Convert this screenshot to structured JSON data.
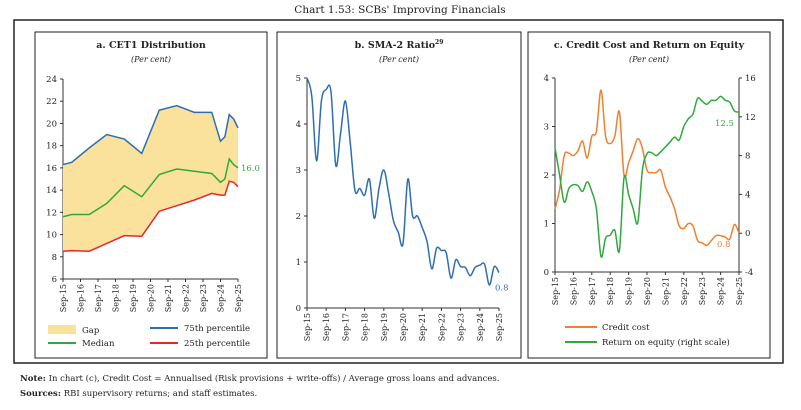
{
  "title": "Chart 1.53: SCBs' Improving Financials",
  "note_label": "Note:",
  "note_text": "In chart (c), Credit Cost = Annualised (Risk provisions + write-offs) / Average gross loans and advances.",
  "sources_label": "Sources:",
  "sources_text": "RBI supervisory returns; and staff estimates.",
  "chart_data": [
    {
      "type": "area",
      "title": "a. CET1 Distribution",
      "subtitle": "(Per cent)",
      "x_ticks": [
        "Sep-15",
        "Sep-16",
        "Sep-17",
        "Sep-18",
        "Sep-19",
        "Sep-20",
        "Sep-21",
        "Sep-22",
        "Sep-23",
        "Sep-24",
        "Sep-25"
      ],
      "x": [
        "Sep-15",
        "Mar-16",
        "Mar-17",
        "Mar-18",
        "Mar-19",
        "Mar-20",
        "Mar-21",
        "Mar-22",
        "Mar-23",
        "Mar-24",
        "Sep-24",
        "Dec-24",
        "Mar-25",
        "Jun-25",
        "Sep-25"
      ],
      "ylim": [
        6,
        24
      ],
      "yticks": [
        6,
        8,
        10,
        12,
        14,
        16,
        18,
        20,
        22,
        24
      ],
      "series": [
        {
          "name": "75th  percentile",
          "color": "#2e6db4",
          "values": [
            16.3,
            16.5,
            17.8,
            19.0,
            18.6,
            17.3,
            21.2,
            21.6,
            21.0,
            21.0,
            18.4,
            18.8,
            20.8,
            20.4,
            19.6
          ]
        },
        {
          "name": "Median",
          "color": "#2eaa3c",
          "values": [
            11.6,
            11.8,
            11.8,
            12.8,
            14.4,
            13.4,
            15.4,
            15.9,
            15.7,
            15.5,
            14.7,
            15.0,
            16.8,
            16.3,
            16.0
          ]
        },
        {
          "name": "25th percentile",
          "color": "#e8262a",
          "values": [
            8.5,
            8.55,
            8.5,
            9.2,
            9.9,
            9.85,
            12.1,
            12.6,
            13.1,
            13.7,
            13.55,
            13.55,
            14.8,
            14.7,
            14.3
          ]
        }
      ],
      "gap": {
        "name": "Gap",
        "color": "#fbe29c"
      },
      "end_label": "16.0",
      "legend_position": "bottom"
    },
    {
      "type": "line",
      "title": "b. SMA-2 Ratio",
      "title_sup": "29",
      "subtitle": "(Per cent)",
      "x_ticks": [
        "Sep-15",
        "Sep-16",
        "Sep-17",
        "Sep-18",
        "Sep-19",
        "Sep-20",
        "Sep-21",
        "Sep-22",
        "Sep-23",
        "Sep-24",
        "Sep-25"
      ],
      "ylim": [
        0,
        5
      ],
      "yticks": [
        0,
        1,
        2,
        3,
        4,
        5
      ],
      "series": [
        {
          "color": "#2e6db4",
          "values": [
            5.0,
            4.6,
            3.2,
            4.5,
            4.75,
            4.7,
            3.1,
            3.8,
            4.5,
            3.6,
            2.55,
            2.6,
            2.45,
            2.8,
            1.95,
            2.6,
            3.0,
            2.5,
            1.9,
            1.65,
            1.4,
            2.8,
            2.0,
            2.0,
            1.75,
            1.45,
            0.85,
            1.3,
            1.25,
            1.2,
            0.65,
            1.05,
            0.9,
            0.88,
            0.7,
            0.88,
            0.93,
            0.95,
            0.5,
            0.9,
            0.77
          ]
        }
      ],
      "end_label": "0.8"
    },
    {
      "type": "line",
      "title": "c. Credit Cost and Return on Equity",
      "subtitle": "(Per cent)",
      "x_ticks": [
        "Sep-15",
        "Sep-16",
        "Sep-17",
        "Sep-18",
        "Sep-19",
        "Sep-20",
        "Sep-21",
        "Sep-22",
        "Sep-23",
        "Sep-24",
        "Sep-25"
      ],
      "ylim": [
        0,
        4
      ],
      "yticks": [
        0,
        1,
        2,
        3,
        4
      ],
      "y2lim": [
        -4,
        16
      ],
      "y2ticks": [
        -4,
        0,
        4,
        8,
        12,
        16
      ],
      "series": [
        {
          "name": "Credit cost",
          "axis": "left",
          "color": "#f07f2e",
          "values": [
            1.3,
            1.7,
            2.4,
            2.45,
            2.4,
            2.5,
            2.7,
            2.35,
            2.8,
            2.9,
            3.75,
            2.8,
            2.65,
            2.8,
            3.3,
            2.0,
            2.25,
            2.5,
            2.75,
            2.55,
            2.1,
            2.05,
            2.05,
            2.1,
            1.75,
            1.55,
            1.3,
            0.95,
            0.9,
            1.0,
            0.95,
            0.65,
            0.6,
            0.55,
            0.65,
            0.75,
            0.75,
            0.72,
            0.68,
            0.98,
            0.8
          ],
          "end_label": "0.8"
        },
        {
          "name": "Return on equity (right scale)",
          "axis": "right",
          "color": "#2eaa3c",
          "values": [
            8.8,
            6.0,
            3.2,
            4.6,
            5.0,
            4.9,
            4.3,
            5.3,
            4.3,
            2.5,
            -2.4,
            -0.5,
            -0.2,
            0.3,
            -1.8,
            5.7,
            4.0,
            2.5,
            1.1,
            6.5,
            8.2,
            8.3,
            8.0,
            8.4,
            8.9,
            9.4,
            9.9,
            9.6,
            11.0,
            11.8,
            12.3,
            13.9,
            13.6,
            13.3,
            13.7,
            13.7,
            14.1,
            13.7,
            13.5,
            12.6,
            12.5
          ],
          "end_label": "12.5"
        }
      ],
      "legend_position": "bottom"
    }
  ]
}
